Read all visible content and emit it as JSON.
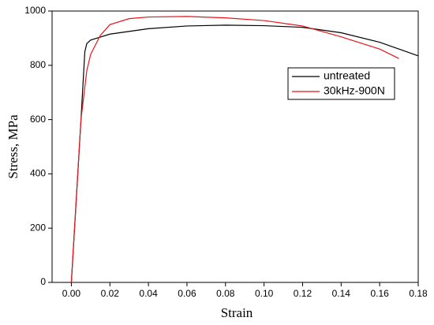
{
  "chart_data": {
    "type": "line",
    "x_label": "Strain",
    "y_label": "Stress, MPa",
    "xlim": [
      -0.01,
      0.18
    ],
    "ylim": [
      0,
      1000
    ],
    "xticks": [
      {
        "value": 0,
        "label": "0.00"
      },
      {
        "value": 0.02,
        "label": "0.02"
      },
      {
        "value": 0.04,
        "label": "0.04"
      },
      {
        "value": 0.06,
        "label": "0.06"
      },
      {
        "value": 0.08,
        "label": "0.08"
      },
      {
        "value": 0.1,
        "label": "0.10"
      },
      {
        "value": 0.12,
        "label": "0.12"
      },
      {
        "value": 0.14,
        "label": "0.14"
      },
      {
        "value": 0.16,
        "label": "0.16"
      },
      {
        "value": 0.18,
        "label": "0.18"
      }
    ],
    "yticks": [
      0,
      200,
      400,
      600,
      800,
      1000
    ],
    "legend": "upper right",
    "series": [
      {
        "name": "untreated",
        "color": "#000000",
        "x": [
          0,
          0.005,
          0.007,
          0.008,
          0.01,
          0.02,
          0.04,
          0.06,
          0.08,
          0.1,
          0.12,
          0.14,
          0.16,
          0.18
        ],
        "values": [
          0,
          600,
          850,
          880,
          893,
          915,
          935,
          945,
          948,
          946,
          940,
          920,
          885,
          835
        ]
      },
      {
        "name": "30kHz-900N",
        "color": "#e8141c",
        "x": [
          0,
          0.005,
          0.008,
          0.01,
          0.015,
          0.02,
          0.03,
          0.04,
          0.06,
          0.08,
          0.1,
          0.12,
          0.14,
          0.16,
          0.17
        ],
        "values": [
          0,
          600,
          780,
          840,
          910,
          950,
          972,
          978,
          980,
          975,
          965,
          945,
          905,
          860,
          825
        ]
      }
    ]
  }
}
